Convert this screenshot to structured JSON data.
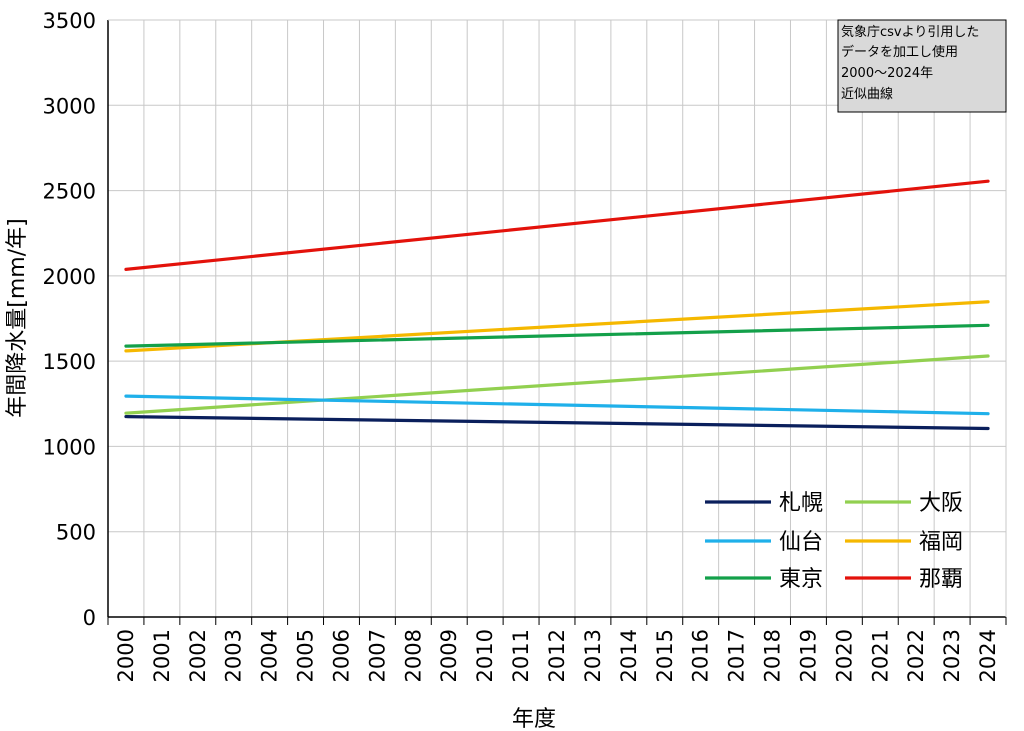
{
  "chart_data": {
    "type": "line",
    "title": "",
    "xlabel": "年度",
    "ylabel": "年間降水量[mm/年]",
    "x": [
      "2000",
      "2001",
      "2002",
      "2003",
      "2004",
      "2005",
      "2006",
      "2007",
      "2008",
      "2009",
      "2010",
      "2011",
      "2012",
      "2013",
      "2014",
      "2015",
      "2016",
      "2017",
      "2018",
      "2019",
      "2020",
      "2021",
      "2022",
      "2023",
      "2024"
    ],
    "ylim": [
      0,
      3500
    ],
    "yticks": [
      0,
      500,
      1000,
      1500,
      2000,
      2500,
      3000,
      3500
    ],
    "grid": true,
    "legend_position": "bottom-right",
    "series": [
      {
        "name": "札幌",
        "color": "#0a1f5c",
        "start": 1175,
        "end": 1105
      },
      {
        "name": "大阪",
        "color": "#92d050",
        "start": 1195,
        "end": 1530
      },
      {
        "name": "仙台",
        "color": "#1fb0ea",
        "start": 1295,
        "end": 1192
      },
      {
        "name": "福岡",
        "color": "#f5b800",
        "start": 1560,
        "end": 1848
      },
      {
        "name": "東京",
        "color": "#13a04a",
        "start": 1588,
        "end": 1710
      },
      {
        "name": "那覇",
        "color": "#e3120b",
        "start": 2038,
        "end": 2555
      }
    ],
    "annotation": {
      "lines": [
        "気象庁csvより引用した",
        "データを加工し使用",
        "2000～2024年",
        "近似曲線"
      ]
    }
  }
}
